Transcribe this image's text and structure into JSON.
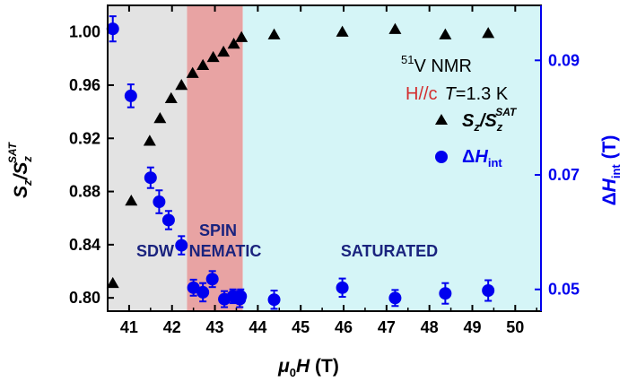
{
  "chart_data": {
    "type": "scatter",
    "xlabel_italic": "μ",
    "xlabel_sub": "0",
    "xlabel_var": "H",
    "xlabel_unit": " (T)",
    "xlim": [
      40.5,
      50.6
    ],
    "x_ticks": [
      41,
      42,
      43,
      44,
      45,
      46,
      47,
      48,
      49,
      50
    ],
    "y_left": {
      "label_main": "S",
      "label_sub": "z",
      "label_sep": "/S",
      "label_sub2": "z",
      "label_sup2": "SAT",
      "ylim": [
        0.79,
        1.02
      ],
      "ticks": [
        "0.80",
        "0.84",
        "0.88",
        "0.92",
        "0.96",
        "1.00"
      ],
      "color": "#000000"
    },
    "y_right": {
      "label_delta": "Δ",
      "label_var": "H",
      "label_sub": "int",
      "label_unit": " (T)",
      "ylim": [
        0.0462,
        0.0996
      ],
      "ticks": [
        "0.05",
        "0.07",
        "0.09"
      ],
      "color": "#0000ee"
    },
    "regions": [
      {
        "label": "SDW",
        "x0": 40.5,
        "x1": 42.35,
        "color": "#e3e3e3"
      },
      {
        "label": "SPIN NEMATIC",
        "label_line1": "SPIN",
        "label_line2": "NEMATIC",
        "x0": 42.35,
        "x1": 43.65,
        "color": "#e8a3a3"
      },
      {
        "label": "SATURATED",
        "x0": 43.65,
        "x1": 50.6,
        "color": "#d5f5f7"
      }
    ],
    "annotation": {
      "sup": "51",
      "nucleus": "V NMR",
      "field_dir": "H//c",
      "field_dir_color": "#d32f2f",
      "temp_var": "T",
      "temp_val": "=1.3 K"
    },
    "series": [
      {
        "name": "Sz/Sz^SAT",
        "legend_main": "S",
        "legend_sub": "z",
        "legend_sep": "/S",
        "legend_sub2": "z",
        "legend_sup2": "SAT",
        "axis": "left",
        "marker": "triangle",
        "color": "#000000",
        "x": [
          40.62,
          41.05,
          41.48,
          41.72,
          41.98,
          42.22,
          42.48,
          42.72,
          42.96,
          43.2,
          43.44,
          43.62,
          44.38,
          45.97,
          47.2,
          48.37,
          49.37
        ],
        "y": [
          0.811,
          0.873,
          0.918,
          0.935,
          0.95,
          0.96,
          0.969,
          0.975,
          0.981,
          0.985,
          0.991,
          0.996,
          0.998,
          1.0,
          1.002,
          0.998,
          0.999
        ]
      },
      {
        "name": "ΔHint",
        "legend_delta": "Δ",
        "legend_var": "H",
        "legend_sub": "int",
        "axis": "right",
        "marker": "circle",
        "color": "#0000ee",
        "x": [
          40.62,
          41.04,
          41.5,
          41.7,
          41.92,
          42.22,
          42.5,
          42.72,
          42.94,
          43.22,
          43.42,
          43.58,
          43.6,
          44.38,
          45.97,
          47.2,
          48.37,
          49.37
        ],
        "y": [
          0.0955,
          0.0838,
          0.0695,
          0.0653,
          0.0621,
          0.0577,
          0.0503,
          0.0495,
          0.0518,
          0.0483,
          0.0488,
          0.0483,
          0.0488,
          0.0482,
          0.0503,
          0.0485,
          0.0493,
          0.0498
        ],
        "err": [
          0.0022,
          0.002,
          0.0018,
          0.002,
          0.0016,
          0.0016,
          0.0014,
          0.0016,
          0.0014,
          0.0014,
          0.0012,
          0.0014,
          0.0012,
          0.0016,
          0.0016,
          0.0014,
          0.0018,
          0.0018
        ]
      }
    ]
  }
}
